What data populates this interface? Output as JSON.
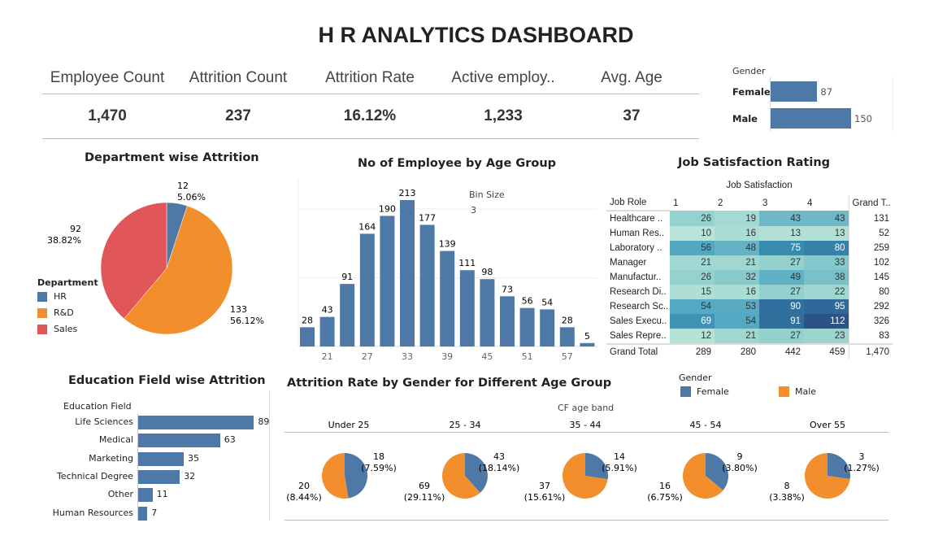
{
  "title": "H R ANALYTICS DASHBOARD",
  "kpis": [
    {
      "label": "Employee Count",
      "value": "1,470"
    },
    {
      "label": "Attrition Count",
      "value": "237"
    },
    {
      "label": "Attrition Rate",
      "value": "16.12%"
    },
    {
      "label": "Active employ..",
      "value": "1,233"
    },
    {
      "label": "Avg. Age",
      "value": "37"
    }
  ],
  "gender_bar": {
    "header": "Gender",
    "items": [
      {
        "label": "Female",
        "value": 87
      },
      {
        "label": "Male",
        "value": 150
      }
    ],
    "color": "#4e79a7"
  },
  "department": {
    "title": "Department wise Attrition",
    "legend_title": "Department",
    "slices": [
      {
        "name": "HR",
        "value": 12,
        "pct": "5.06%",
        "color": "#4e79a7"
      },
      {
        "name": "R&D",
        "value": 133,
        "pct": "56.12%",
        "color": "#f28e2b"
      },
      {
        "name": "Sales",
        "value": 92,
        "pct": "38.82%",
        "color": "#e15759"
      }
    ]
  },
  "age": {
    "title": "No of Employee by Age Group",
    "bin_label": "Bin Size",
    "bin_value": "3",
    "chart_data": {
      "type": "bar",
      "x": [
        18,
        21,
        24,
        27,
        30,
        33,
        36,
        39,
        42,
        45,
        48,
        51,
        54,
        57,
        60
      ],
      "values": [
        28,
        43,
        91,
        164,
        190,
        213,
        177,
        139,
        111,
        98,
        73,
        56,
        54,
        28,
        5
      ],
      "ticks": [
        "21",
        "27",
        "33",
        "39",
        "45",
        "51",
        "57"
      ],
      "ylim": [
        0,
        230
      ],
      "color": "#4e79a7"
    }
  },
  "job": {
    "title": "Job Satisfaction Rating",
    "col_header": "Job Satisfaction",
    "row_header": "Job Role",
    "cols": [
      "1",
      "2",
      "3",
      "4"
    ],
    "total_label": "Grand T..",
    "rows": [
      {
        "role": "Healthcare ..",
        "v": [
          26,
          19,
          43,
          43
        ],
        "t": "131"
      },
      {
        "role": "Human Res..",
        "v": [
          10,
          16,
          13,
          13
        ],
        "t": "52"
      },
      {
        "role": "Laboratory ..",
        "v": [
          56,
          48,
          75,
          80
        ],
        "t": "259"
      },
      {
        "role": "Manager",
        "v": [
          21,
          21,
          27,
          33
        ],
        "t": "102"
      },
      {
        "role": "Manufactur..",
        "v": [
          26,
          32,
          49,
          38
        ],
        "t": "145"
      },
      {
        "role": "Research Di..",
        "v": [
          15,
          16,
          27,
          22
        ],
        "t": "80"
      },
      {
        "role": "Research Sc..",
        "v": [
          54,
          53,
          90,
          95
        ],
        "t": "292"
      },
      {
        "role": "Sales Execu..",
        "v": [
          69,
          54,
          91,
          112
        ],
        "t": "326"
      },
      {
        "role": "Sales Repre..",
        "v": [
          12,
          21,
          27,
          23
        ],
        "t": "83"
      }
    ],
    "grand": {
      "label": "Grand Total",
      "v": [
        "289",
        "280",
        "442",
        "459"
      ],
      "t": "1,470"
    }
  },
  "education": {
    "title": "Education Field wise Attrition",
    "header": "Education Field",
    "items": [
      {
        "label": "Life Sciences",
        "value": 89
      },
      {
        "label": "Medical",
        "value": 63
      },
      {
        "label": "Marketing",
        "value": 35
      },
      {
        "label": "Technical Degree",
        "value": 32
      },
      {
        "label": "Other",
        "value": 11
      },
      {
        "label": "Human Resources",
        "value": 7
      }
    ]
  },
  "gender_age": {
    "title": "Attrition Rate by Gender for Different Age Group",
    "band_label": "CF age band",
    "legend_title": "Gender",
    "legend": [
      {
        "name": "Female",
        "color": "#4e79a7"
      },
      {
        "name": "Male",
        "color": "#f28e2b"
      }
    ],
    "groups": [
      {
        "band": "Under 25",
        "female": 18,
        "female_pct": "(7.59%)",
        "male": 20,
        "male_pct": "(8.44%)"
      },
      {
        "band": "25 - 34",
        "female": 43,
        "female_pct": "(18.14%)",
        "male": 69,
        "male_pct": "(29.11%)"
      },
      {
        "band": "35 - 44",
        "female": 14,
        "female_pct": "(5.91%)",
        "male": 37,
        "male_pct": "(15.61%)"
      },
      {
        "band": "45 - 54",
        "female": 9,
        "female_pct": "(3.80%)",
        "male": 16,
        "male_pct": "(6.75%)"
      },
      {
        "band": "Over 55",
        "female": 3,
        "female_pct": "(1.27%)",
        "male": 8,
        "male_pct": "(3.38%)"
      }
    ]
  }
}
